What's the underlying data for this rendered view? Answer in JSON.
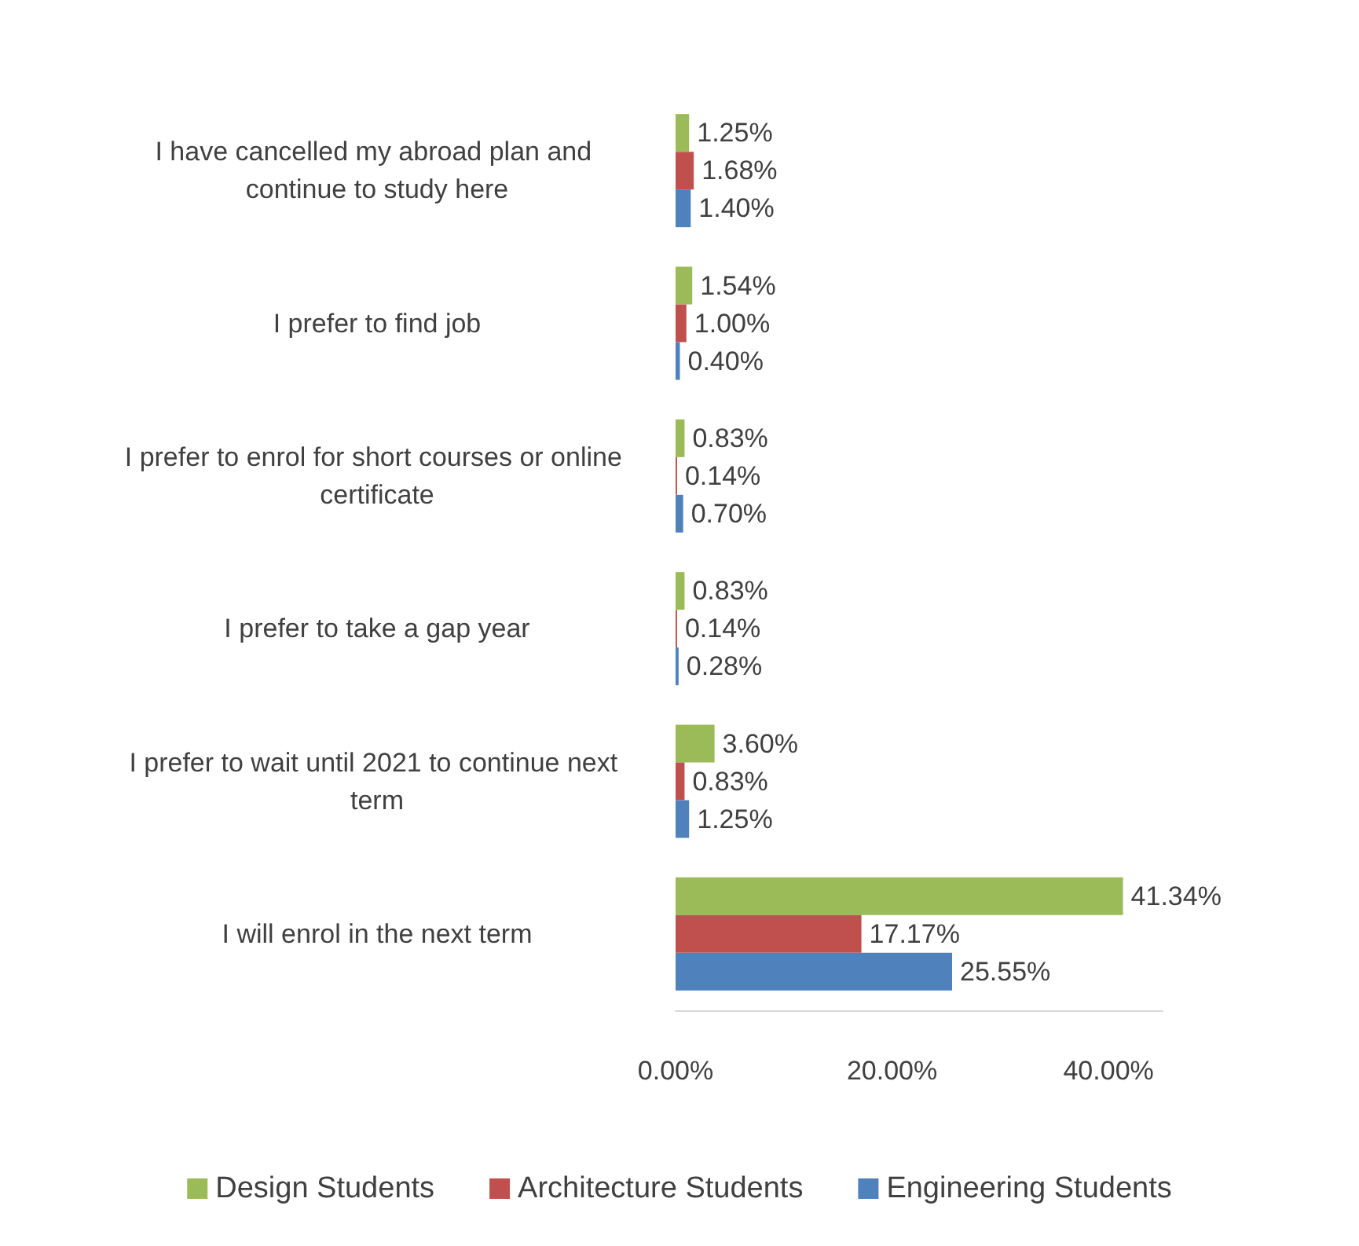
{
  "chart_data": {
    "type": "bar",
    "orientation": "horizontal",
    "categories": [
      "I have cancelled my abroad plan and continue to study here",
      "I prefer to find job",
      "I prefer to enrol for short courses or online certificate",
      "I prefer to take a gap year",
      "I prefer to wait until 2021 to continue next term",
      "I will enrol in the next term"
    ],
    "series": [
      {
        "name": "Design Students",
        "color": "#9bbb59",
        "values": [
          1.25,
          1.54,
          0.83,
          0.83,
          3.6,
          41.34
        ],
        "value_labels": [
          "1.25%",
          "1.54%",
          "0.83%",
          "0.83%",
          "3.60%",
          "41.34%"
        ]
      },
      {
        "name": "Architecture Students",
        "color": "#c0504d",
        "values": [
          1.68,
          1.0,
          0.14,
          0.14,
          0.83,
          17.17
        ],
        "value_labels": [
          "1.68%",
          "1.00%",
          "0.14%",
          "0.14%",
          "0.83%",
          "17.17%"
        ]
      },
      {
        "name": "Engineering Students",
        "color": "#4f81bd",
        "values": [
          1.4,
          0.4,
          0.7,
          0.28,
          1.25,
          25.55
        ],
        "value_labels": [
          "1.40%",
          "0.40%",
          "0.70%",
          "0.28%",
          "1.25%",
          "25.55%"
        ]
      }
    ],
    "xlim": [
      0,
      45
    ],
    "xticks": [
      {
        "value": 0,
        "label": "0.00%"
      },
      {
        "value": 20,
        "label": "20.00%"
      },
      {
        "value": 40,
        "label": "40.00%"
      }
    ],
    "grid": false,
    "legend": "bottom"
  }
}
